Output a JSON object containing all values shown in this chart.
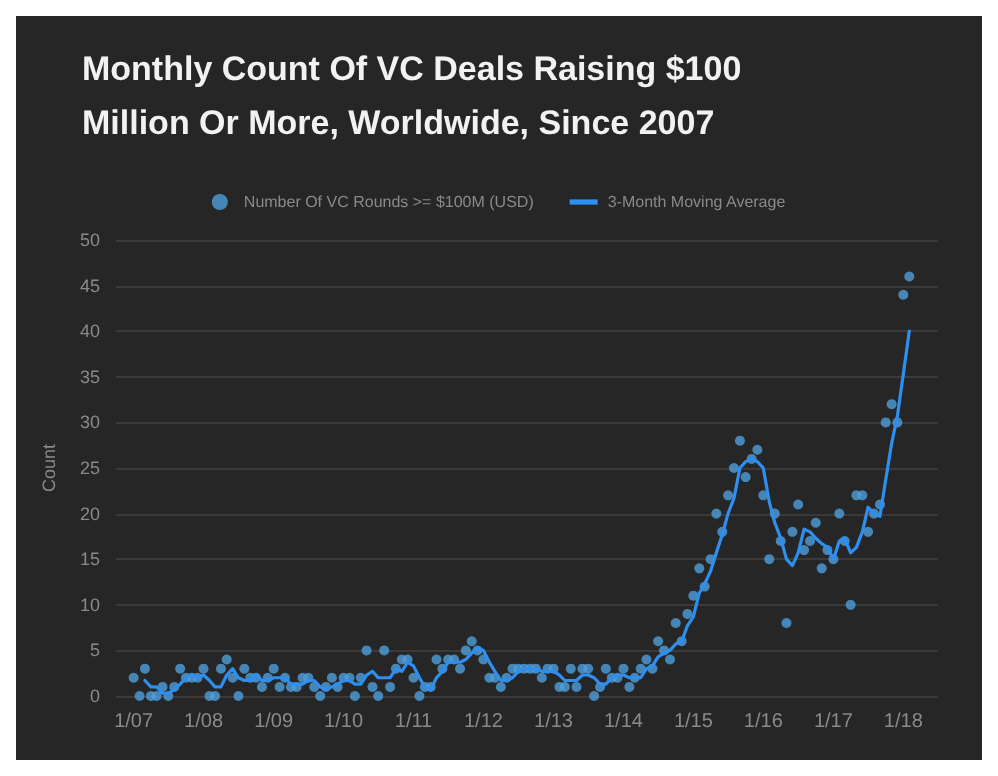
{
  "chart_data": {
    "type": "scatter",
    "title": "Monthly Count Of VC Deals Raising $100\nMillion Or More, Worldwide, Since 2007",
    "ylabel": "Count",
    "x": [
      "2007-01",
      "2007-02",
      "2007-03",
      "2007-04",
      "2007-05",
      "2007-06",
      "2007-07",
      "2007-08",
      "2007-09",
      "2007-10",
      "2007-11",
      "2007-12",
      "2008-01",
      "2008-02",
      "2008-03",
      "2008-04",
      "2008-05",
      "2008-06",
      "2008-07",
      "2008-08",
      "2008-09",
      "2008-10",
      "2008-11",
      "2008-12",
      "2009-01",
      "2009-02",
      "2009-03",
      "2009-04",
      "2009-05",
      "2009-06",
      "2009-07",
      "2009-08",
      "2009-09",
      "2009-10",
      "2009-11",
      "2009-12",
      "2010-01",
      "2010-02",
      "2010-03",
      "2010-04",
      "2010-05",
      "2010-06",
      "2010-07",
      "2010-08",
      "2010-09",
      "2010-10",
      "2010-11",
      "2010-12",
      "2011-01",
      "2011-02",
      "2011-03",
      "2011-04",
      "2011-05",
      "2011-06",
      "2011-07",
      "2011-08",
      "2011-09",
      "2011-10",
      "2011-11",
      "2011-12",
      "2012-01",
      "2012-02",
      "2012-03",
      "2012-04",
      "2012-05",
      "2012-06",
      "2012-07",
      "2012-08",
      "2012-09",
      "2012-10",
      "2012-11",
      "2012-12",
      "2013-01",
      "2013-02",
      "2013-03",
      "2013-04",
      "2013-05",
      "2013-06",
      "2013-07",
      "2013-08",
      "2013-09",
      "2013-10",
      "2013-11",
      "2013-12",
      "2014-01",
      "2014-02",
      "2014-03",
      "2014-04",
      "2014-05",
      "2014-06",
      "2014-07",
      "2014-08",
      "2014-09",
      "2014-10",
      "2014-11",
      "2014-12",
      "2015-01",
      "2015-02",
      "2015-03",
      "2015-04",
      "2015-05",
      "2015-06",
      "2015-07",
      "2015-08",
      "2015-09",
      "2015-10",
      "2015-11",
      "2015-12",
      "2016-01",
      "2016-02",
      "2016-03",
      "2016-04",
      "2016-05",
      "2016-06",
      "2016-07",
      "2016-08",
      "2016-09",
      "2016-10",
      "2016-11",
      "2016-12",
      "2017-01",
      "2017-02",
      "2017-03",
      "2017-04",
      "2017-05",
      "2017-06",
      "2017-07",
      "2017-08",
      "2017-09",
      "2017-10",
      "2017-11",
      "2017-12",
      "2018-01",
      "2018-02"
    ],
    "series": [
      {
        "name": "Number Of VC Rounds >= $100M (USD)",
        "marker": "circle",
        "color": "#4f9fdc",
        "values": [
          2,
          0,
          3,
          0,
          0,
          1,
          0,
          1,
          3,
          2,
          2,
          2,
          3,
          0,
          0,
          3,
          4,
          2,
          0,
          3,
          2,
          2,
          1,
          2,
          3,
          1,
          2,
          1,
          1,
          2,
          2,
          1,
          0,
          1,
          2,
          1,
          2,
          2,
          0,
          2,
          5,
          1,
          0,
          5,
          1,
          3,
          4,
          4,
          2,
          0,
          1,
          1,
          4,
          3,
          4,
          4,
          3,
          5,
          6,
          5,
          4,
          2,
          2,
          1,
          2,
          3,
          3,
          3,
          3,
          3,
          2,
          3,
          3,
          1,
          1,
          3,
          1,
          3,
          3,
          0,
          1,
          3,
          2,
          2,
          3,
          1,
          2,
          3,
          4,
          3,
          6,
          5,
          4,
          8,
          6,
          9,
          11,
          14,
          12,
          15,
          20,
          18,
          22,
          25,
          28,
          24,
          26,
          27,
          22,
          15,
          20,
          17,
          8,
          18,
          21,
          16,
          17,
          19,
          14,
          16,
          15,
          20,
          17,
          10,
          22,
          22,
          18,
          20,
          21,
          30,
          32,
          30,
          44,
          46
        ]
      },
      {
        "name": "3-Month Moving Average",
        "type": "line",
        "marker": "none",
        "line_style": "solid",
        "color": "#2e8ff0",
        "values": [
          null,
          null,
          1.7,
          1,
          1,
          0.3,
          0.3,
          0.7,
          1.3,
          2,
          2.3,
          2,
          2.3,
          1.7,
          1,
          1,
          2.3,
          3,
          2,
          1.7,
          1.7,
          2.3,
          1.7,
          1.7,
          2,
          2,
          2,
          1.3,
          1.3,
          1.3,
          1.7,
          1.7,
          1,
          0.7,
          1,
          1.3,
          1.7,
          1.7,
          1.3,
          1.3,
          2.3,
          2.7,
          2,
          2,
          2,
          3,
          2.7,
          3.7,
          3.3,
          2,
          1,
          0.7,
          2,
          2.7,
          3.7,
          3.7,
          3.7,
          4,
          4.7,
          5.3,
          5,
          3.7,
          2.7,
          1.7,
          1.7,
          2,
          2.7,
          3,
          3,
          3,
          2.7,
          2.7,
          2.7,
          2.3,
          1.7,
          1.7,
          1.7,
          2.3,
          2.3,
          2,
          1.3,
          1.3,
          2,
          2.3,
          2.3,
          2,
          2,
          2,
          3,
          3.3,
          4.3,
          4.7,
          5,
          5.7,
          6,
          7.7,
          8.7,
          11.3,
          12.3,
          13.7,
          15.7,
          17.7,
          20,
          21.7,
          25,
          25.7,
          26,
          25.7,
          25,
          21.3,
          19,
          17.3,
          15,
          14.3,
          15.7,
          18.3,
          18,
          17.3,
          16.7,
          16.3,
          15,
          17,
          17.3,
          15.7,
          16.3,
          18,
          20.7,
          20,
          19.7,
          23.7,
          27.7,
          30.7,
          35.3,
          40
        ]
      }
    ],
    "xlim": [
      "2006-10",
      "2018-07"
    ],
    "xticks": [
      {
        "value": "2007-01",
        "label": "1/07"
      },
      {
        "value": "2008-01",
        "label": "1/08"
      },
      {
        "value": "2009-01",
        "label": "1/09"
      },
      {
        "value": "2010-01",
        "label": "1/10"
      },
      {
        "value": "2011-01",
        "label": "1/11"
      },
      {
        "value": "2012-01",
        "label": "1/12"
      },
      {
        "value": "2013-01",
        "label": "1/13"
      },
      {
        "value": "2014-01",
        "label": "1/14"
      },
      {
        "value": "2015-01",
        "label": "1/15"
      },
      {
        "value": "2016-01",
        "label": "1/16"
      },
      {
        "value": "2017-01",
        "label": "1/17"
      },
      {
        "value": "2018-01",
        "label": "1/18"
      }
    ],
    "ylim": [
      0,
      50
    ],
    "yticks": [
      0,
      5,
      10,
      15,
      20,
      25,
      30,
      35,
      40,
      45,
      50
    ],
    "grid": "y",
    "legend": "top"
  }
}
